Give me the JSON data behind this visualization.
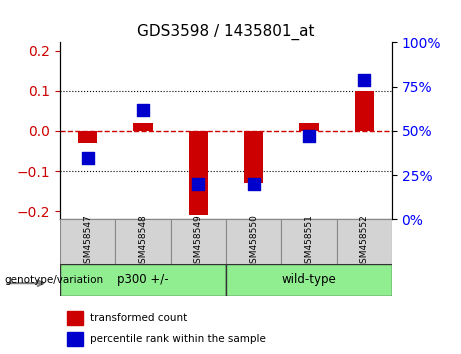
{
  "title": "GDS3598 / 1435801_at",
  "samples": [
    "GSM458547",
    "GSM458548",
    "GSM458549",
    "GSM458550",
    "GSM458551",
    "GSM458552"
  ],
  "red_values": [
    -0.03,
    0.02,
    -0.21,
    -0.13,
    0.02,
    0.1
  ],
  "blue_values_pct": [
    35,
    62,
    20,
    20,
    47,
    79
  ],
  "groups": [
    {
      "label": "p300 +/-",
      "indices": [
        0,
        1,
        2
      ],
      "color": "#90EE90"
    },
    {
      "label": "wild-type",
      "indices": [
        3,
        4,
        5
      ],
      "color": "#90EE90"
    }
  ],
  "ylim_left": [
    -0.22,
    0.22
  ],
  "ylim_right": [
    0,
    100
  ],
  "left_yticks": [
    -0.2,
    -0.1,
    0.0,
    0.1,
    0.2
  ],
  "right_yticks": [
    0,
    25,
    50,
    75,
    100
  ],
  "red_color": "#CC0000",
  "blue_color": "#0000CC",
  "bar_width": 0.35,
  "blue_square_size": 80,
  "legend_items": [
    "transformed count",
    "percentile rank within the sample"
  ],
  "group_label": "genotype/variation",
  "bg_color": "#ffffff",
  "plot_bg": "#ffffff",
  "grid_color": "#000000",
  "dashed_zero_color": "#CC0000"
}
